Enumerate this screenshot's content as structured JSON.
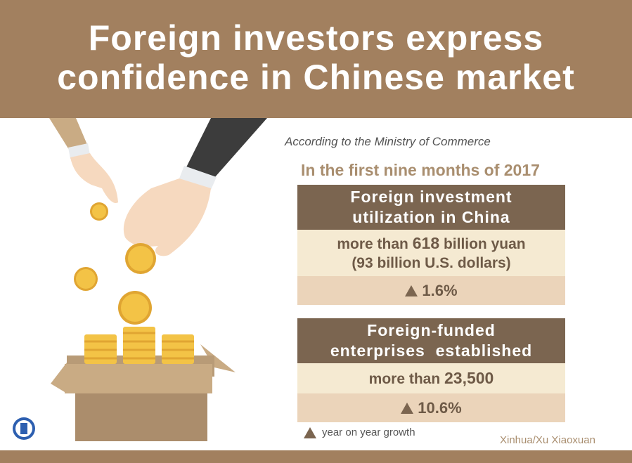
{
  "title": {
    "line1": "Foreign investors express",
    "line2": "confidence in Chinese market"
  },
  "source": "According to the Ministry of Commerce",
  "period": "In the first nine months of 2017",
  "panels": [
    {
      "heading_line1": "Foreign investment",
      "heading_line2": "utilization in China",
      "value_prefix": "more than ",
      "value_bold": "618",
      "value_suffix": " billion yuan",
      "value_line2": "(93 billion U.S. dollars)",
      "growth": "1.6%"
    },
    {
      "heading_line1": "Foreign-funded",
      "heading_line2": "enterprises  established",
      "value_prefix": "more than ",
      "value_bold": "23,500",
      "growth": "10.6%"
    }
  ],
  "legend": {
    "icon": "up-triangle-icon",
    "label": "year on year growth"
  },
  "credit": "Xinhua/Xu Xiaoxuan",
  "logo": "Xinhua",
  "colors": {
    "banner": "#a2805f",
    "panel_header": "#7b6550",
    "value_row": "#f5ead2",
    "growth_row": "#ebd4ba",
    "coin": "#f3c346"
  }
}
